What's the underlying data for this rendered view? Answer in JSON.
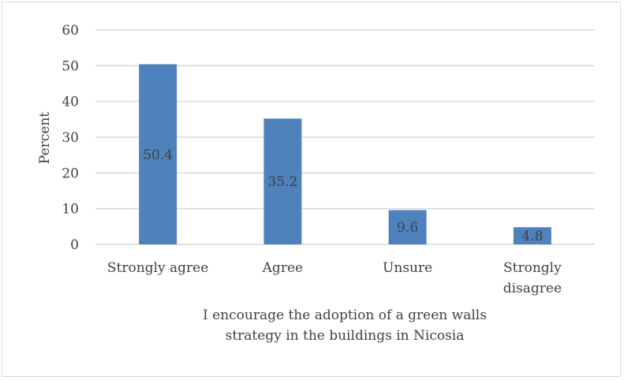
{
  "chart_data": {
    "type": "bar",
    "categories": [
      "Strongly agree",
      "Agree",
      "Unsure",
      "Strongly disagree"
    ],
    "category_lines": [
      [
        "Strongly agree"
      ],
      [
        "Agree"
      ],
      [
        "Unsure"
      ],
      [
        "Strongly",
        "disagree"
      ]
    ],
    "values": [
      50.4,
      35.2,
      9.6,
      4.8
    ],
    "data_labels": [
      "50.4",
      "35.2",
      "9.6",
      "4.8"
    ],
    "ylabel": "Percent",
    "xlabel_lines": [
      "I encourage the adoption of a green walls",
      "strategy in the buildings in Nicosia"
    ],
    "ylim": [
      0,
      60
    ],
    "yticks": [
      0,
      10,
      20,
      30,
      40,
      50,
      60
    ],
    "grid": true,
    "bar_color": "#4f81bd",
    "grid_color": "#d9d9d9"
  }
}
